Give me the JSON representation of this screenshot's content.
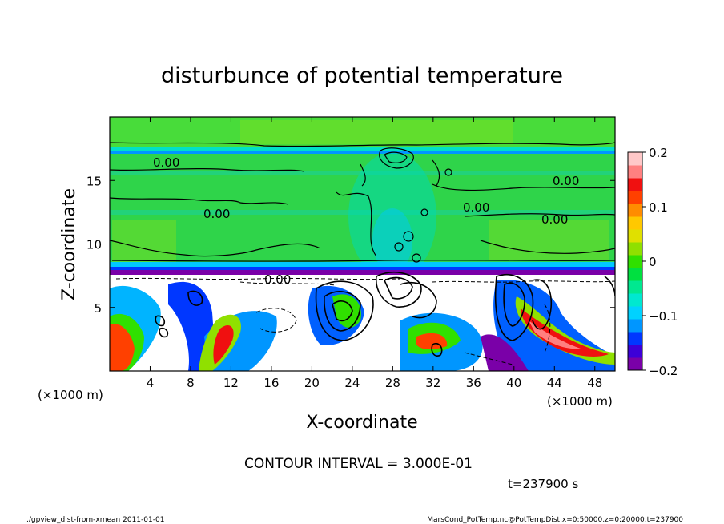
{
  "chart_data": {
    "type": "heatmap",
    "title": "disturbunce of potential temperature",
    "xlabel": "X-coordinate",
    "ylabel": "Z-coordinate",
    "x_unit": "(×1000 m)",
    "z_unit": "(×1000 m)",
    "xlim": [
      0,
      50
    ],
    "ylim": [
      0,
      20
    ],
    "x_ticks": [
      "4",
      "8",
      "12",
      "16",
      "20",
      "24",
      "28",
      "32",
      "36",
      "40",
      "44",
      "48"
    ],
    "y_ticks": [
      "5",
      "10",
      "15"
    ],
    "colorbar": {
      "range": [
        -0.2,
        0.2
      ],
      "tick_labels": [
        "0.2",
        "0.1",
        "0",
        "−0.1",
        "−0.2"
      ],
      "colors": [
        "#7a00a8",
        "#3c00d8",
        "#0037ff",
        "#0096ff",
        "#00d2ff",
        "#00e8d0",
        "#00e890",
        "#00e040",
        "#30e000",
        "#90e000",
        "#e0e000",
        "#ffc800",
        "#ff8c00",
        "#ff4000",
        "#f01010",
        "#ff8080",
        "#ffc8c8"
      ]
    },
    "contour_labels": [
      "0.00",
      "0.00",
      "0.00",
      "0.00",
      "0.00",
      "0.00"
    ],
    "contour_interval": "CONTOUR INTERVAL = 3.000E-01",
    "time": "t=237900 s"
  },
  "footer": {
    "left": "./gpview_dist-from-xmean  2011-01-01",
    "right": "MarsCond_PotTemp.nc@PotTempDist,x=0:50000,z=0:20000,t=237900"
  }
}
